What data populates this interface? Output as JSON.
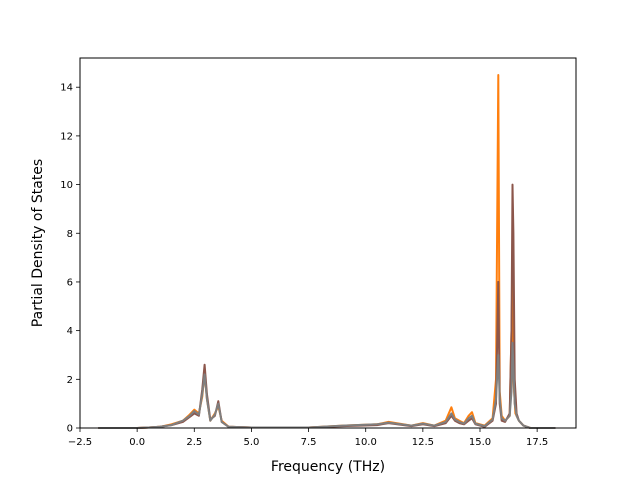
{
  "chart_data": {
    "type": "line",
    "title": "",
    "xlabel": "Frequency (THz)",
    "ylabel": "Partial Density of States",
    "xlim": [
      -2.5,
      19.2
    ],
    "ylim": [
      0,
      15.2
    ],
    "xticks": [
      -2.5,
      0.0,
      2.5,
      5.0,
      7.5,
      10.0,
      12.5,
      15.0,
      17.5
    ],
    "xtick_labels": [
      "−2.5",
      "0.0",
      "2.5",
      "5.0",
      "7.5",
      "10.0",
      "12.5",
      "15.0",
      "17.5"
    ],
    "yticks": [
      0,
      2,
      4,
      6,
      8,
      10,
      12,
      14
    ],
    "ytick_labels": [
      "0",
      "2",
      "4",
      "6",
      "8",
      "10",
      "12",
      "14"
    ],
    "grid": false,
    "legend": "none",
    "series": [
      {
        "color": "#ff7f0e",
        "x": [
          -1.7,
          0.0,
          0.5,
          1.0,
          1.5,
          2.0,
          2.3,
          2.5,
          2.7,
          2.85,
          2.95,
          3.05,
          3.2,
          3.4,
          3.55,
          3.7,
          4.0,
          5.0,
          7.5,
          9.0,
          10.5,
          11.0,
          12.0,
          12.5,
          13.0,
          13.5,
          13.75,
          13.9,
          14.1,
          14.3,
          14.5,
          14.65,
          14.8,
          15.2,
          15.55,
          15.7,
          15.8,
          15.83,
          15.86,
          15.95,
          16.1,
          16.3,
          16.38,
          16.42,
          16.46,
          16.55,
          16.7,
          16.9,
          17.2,
          18.3
        ],
        "y": [
          0,
          0,
          0.02,
          0.05,
          0.15,
          0.3,
          0.55,
          0.75,
          0.6,
          1.3,
          2.3,
          1.2,
          0.3,
          0.6,
          0.9,
          0.3,
          0.05,
          0.02,
          0.02,
          0.1,
          0.15,
          0.25,
          0.1,
          0.2,
          0.1,
          0.3,
          0.85,
          0.4,
          0.3,
          0.2,
          0.5,
          0.65,
          0.2,
          0.1,
          0.4,
          2.0,
          14.5,
          8.0,
          1.5,
          0.5,
          0.3,
          0.5,
          4.0,
          6.5,
          2.0,
          0.6,
          0.3,
          0.1,
          0.0,
          0.0
        ]
      },
      {
        "color": "#8c564b",
        "x": [
          -1.7,
          0.0,
          0.5,
          1.0,
          1.5,
          2.0,
          2.3,
          2.5,
          2.7,
          2.85,
          2.95,
          3.05,
          3.2,
          3.4,
          3.55,
          3.7,
          4.0,
          5.0,
          7.5,
          9.0,
          10.5,
          11.0,
          12.0,
          12.5,
          13.0,
          13.5,
          13.75,
          13.9,
          14.1,
          14.3,
          14.5,
          14.65,
          14.8,
          15.2,
          15.55,
          15.7,
          15.8,
          15.86,
          15.95,
          16.1,
          16.3,
          16.38,
          16.42,
          16.46,
          16.52,
          16.6,
          16.7,
          16.9,
          17.2,
          18.3
        ],
        "y": [
          0,
          0,
          0.02,
          0.05,
          0.12,
          0.25,
          0.45,
          0.6,
          0.5,
          1.6,
          2.6,
          1.4,
          0.35,
          0.5,
          1.1,
          0.25,
          0.05,
          0.02,
          0.02,
          0.08,
          0.12,
          0.2,
          0.08,
          0.15,
          0.08,
          0.2,
          0.5,
          0.3,
          0.2,
          0.15,
          0.3,
          0.4,
          0.15,
          0.05,
          0.3,
          1.0,
          6.0,
          1.0,
          0.3,
          0.25,
          0.6,
          4.0,
          10.0,
          8.0,
          2.0,
          0.6,
          0.3,
          0.1,
          0.0,
          0.0
        ]
      },
      {
        "color": "#7f7f7f",
        "x": [
          -1.7,
          0.0,
          0.5,
          1.0,
          1.5,
          2.0,
          2.3,
          2.5,
          2.7,
          2.85,
          2.95,
          3.05,
          3.2,
          3.4,
          3.55,
          3.7,
          4.0,
          5.0,
          7.5,
          9.0,
          10.5,
          11.0,
          12.0,
          12.5,
          13.0,
          13.5,
          13.75,
          13.9,
          14.1,
          14.3,
          14.5,
          14.65,
          14.8,
          15.2,
          15.55,
          15.7,
          15.8,
          15.86,
          15.95,
          16.1,
          16.3,
          16.38,
          16.42,
          16.46,
          16.52,
          16.6,
          16.7,
          16.9,
          17.2,
          18.3
        ],
        "y": [
          0,
          0,
          0.02,
          0.05,
          0.12,
          0.3,
          0.5,
          0.7,
          0.55,
          1.4,
          2.2,
          1.2,
          0.3,
          0.55,
          1.0,
          0.25,
          0.05,
          0.02,
          0.02,
          0.1,
          0.15,
          0.22,
          0.1,
          0.18,
          0.1,
          0.25,
          0.6,
          0.35,
          0.25,
          0.18,
          0.4,
          0.5,
          0.18,
          0.08,
          0.35,
          1.2,
          3.0,
          1.2,
          0.4,
          0.3,
          0.5,
          1.5,
          3.5,
          2.5,
          1.0,
          0.5,
          0.3,
          0.1,
          0.0,
          0.0
        ]
      }
    ]
  }
}
